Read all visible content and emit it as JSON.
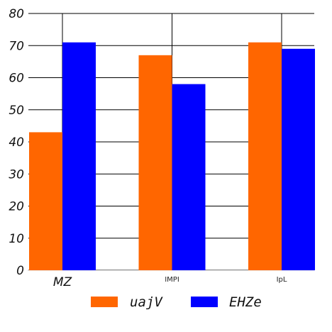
{
  "chart_data": {
    "type": "bar",
    "categories": [
      "MZ",
      "IMPI",
      "IpL"
    ],
    "series": [
      {
        "name": "uajV",
        "values": [
          43,
          67,
          71
        ],
        "color": "#ff6600"
      },
      {
        "name": "EHZe",
        "values": [
          71,
          58,
          69
        ],
        "color": "#0000ff"
      }
    ],
    "ylim": [
      0,
      80
    ],
    "yticks": [
      0,
      10,
      20,
      30,
      40,
      50,
      60,
      70,
      80
    ],
    "grid": "horizontal and vertical",
    "legend_position": "bottom-center",
    "title": "",
    "xlabel": "",
    "ylabel": ""
  }
}
